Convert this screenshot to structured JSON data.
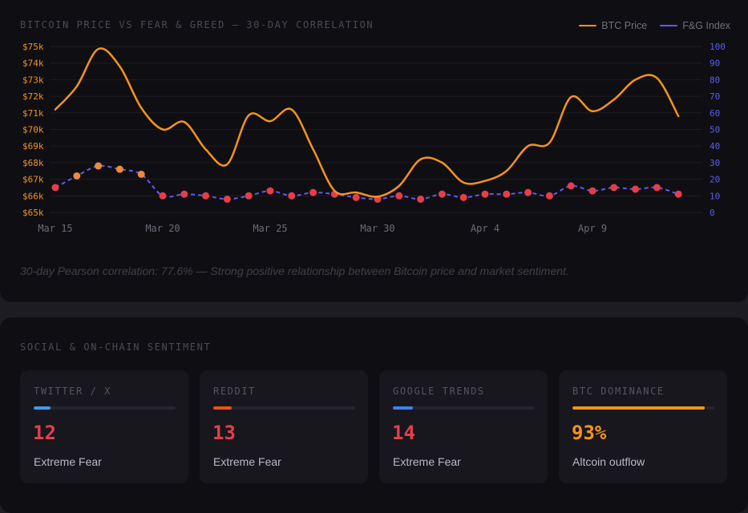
{
  "chart_panel": {
    "title": "BITCOIN PRICE VS FEAR & GREED — 30-DAY CORRELATION",
    "caption": "30-day Pearson correlation: 77.6% — Strong positive relationship between Bitcoin price and market sentiment."
  },
  "colors": {
    "btc_line": "#f7931a",
    "fg_line": "#5b5bf0",
    "fear_dot": "#e53e4a",
    "neutral_dot": "#f0883e",
    "left_axis_text": "#f7931a",
    "right_axis_text": "#5b5bf0"
  },
  "chart_data": {
    "type": "line",
    "x": [
      "Mar 15",
      "Mar 16",
      "Mar 17",
      "Mar 18",
      "Mar 19",
      "Mar 20",
      "Mar 21",
      "Mar 22",
      "Mar 23",
      "Mar 24",
      "Mar 25",
      "Mar 26",
      "Mar 27",
      "Mar 28",
      "Mar 29",
      "Mar 30",
      "Mar 31",
      "Apr 1",
      "Apr 2",
      "Apr 3",
      "Apr 4",
      "Apr 5",
      "Apr 6",
      "Apr 7",
      "Apr 8",
      "Apr 9",
      "Apr 10",
      "Apr 11",
      "Apr 12",
      "Apr 13",
      "Apr 14"
    ],
    "x_tick_labels": [
      "Mar 15",
      "Mar 20",
      "Mar 25",
      "Mar 30",
      "Apr 4",
      "Apr 9"
    ],
    "series": [
      {
        "name": "BTC Price",
        "axis": "left",
        "style": "solid",
        "values": [
          71200,
          72600,
          74850,
          73800,
          71300,
          70000,
          70450,
          68800,
          67900,
          70850,
          70500,
          71200,
          68800,
          66300,
          66200,
          65950,
          66600,
          68200,
          68000,
          66800,
          66900,
          67500,
          69000,
          69200,
          71950,
          71100,
          71800,
          73000,
          73100,
          70800,
          null
        ]
      },
      {
        "name": "F&G Index",
        "axis": "right",
        "style": "dashed",
        "values": [
          15,
          22,
          28,
          26,
          23,
          10,
          11,
          10,
          8,
          10,
          13,
          10,
          12,
          11,
          9,
          8,
          10,
          8,
          11,
          9,
          11,
          11,
          12,
          10,
          16,
          13,
          15,
          14,
          15,
          11,
          null
        ]
      }
    ],
    "left_axis": {
      "ticks": [
        "$75k",
        "$74k",
        "$73k",
        "$72k",
        "$71k",
        "$70k",
        "$69k",
        "$68k",
        "$67k",
        "$66k",
        "$65k"
      ],
      "min": 65000,
      "max": 75000
    },
    "right_axis": {
      "ticks": [
        "100",
        "90",
        "80",
        "70",
        "60",
        "50",
        "40",
        "30",
        "20",
        "10",
        "0"
      ],
      "min": 0,
      "max": 100
    },
    "grid": true,
    "legend_position": "top-right"
  },
  "sentiment": {
    "title": "SOCIAL & ON-CHAIN SENTIMENT",
    "cards": [
      {
        "label": "TWITTER / X",
        "value": "12",
        "status": "Extreme Fear",
        "progress": 0.12,
        "bar_color": "#3b9cf0",
        "value_color": "#e53e4a"
      },
      {
        "label": "REDDIT",
        "value": "13",
        "status": "Extreme Fear",
        "progress": 0.13,
        "bar_color": "#f04e1a",
        "value_color": "#e53e4a"
      },
      {
        "label": "GOOGLE TRENDS",
        "value": "14",
        "status": "Extreme Fear",
        "progress": 0.14,
        "bar_color": "#3b82f6",
        "value_color": "#e53e4a"
      },
      {
        "label": "BTC DOMINANCE",
        "value": "93%",
        "status": "Altcoin outflow",
        "progress": 0.93,
        "bar_color": "#f7931a",
        "value_color": "#f7931a"
      }
    ]
  }
}
